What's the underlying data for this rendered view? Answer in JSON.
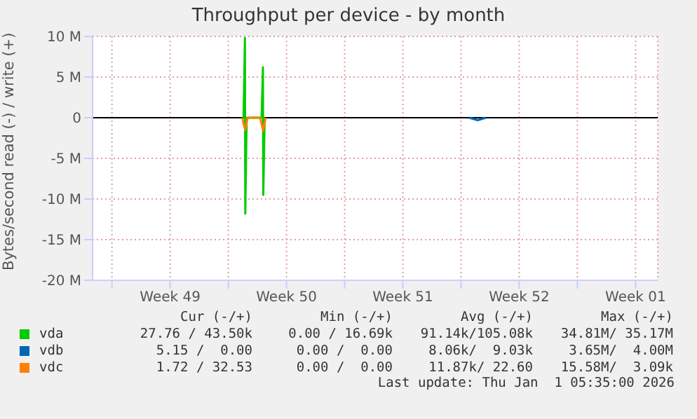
{
  "chart_data": {
    "type": "line",
    "title": "Throughput per device - by month",
    "ylabel": "Bytes/second read (-) / write (+)",
    "series": [
      {
        "name": "vda",
        "color": "#00cc00",
        "x": [
          "2025-12-08T22:00",
          "2025-12-09T00:00",
          "2025-12-09T00:30",
          "2025-12-09T02:30",
          "2025-12-10T00:00",
          "2025-12-10T02:00",
          "2025-12-10T02:30",
          "2025-12-10T04:30"
        ],
        "values": [
          0,
          9800000,
          -11800000,
          0,
          0,
          6200000,
          -9500000,
          0
        ]
      },
      {
        "name": "vdb",
        "color": "#0066b3",
        "x": [
          "2025-12-22T12:00",
          "2025-12-23T00:00",
          "2025-12-23T12:00"
        ],
        "values": [
          0,
          -300000,
          0
        ]
      },
      {
        "name": "vdc",
        "color": "#ff8000",
        "x": [
          "2025-12-08T20:00",
          "2025-12-09T00:15",
          "2025-12-09T04:00",
          "2025-12-09T22:00",
          "2025-12-10T02:15",
          "2025-12-10T06:00"
        ],
        "values": [
          0,
          -1500000,
          0,
          0,
          -1600000,
          0
        ]
      }
    ],
    "xlim": [
      "2025-11-29T20:00",
      "2026-01-02T20:00"
    ],
    "xticks": [
      {
        "value": "2025-12-01",
        "label": null
      },
      {
        "value": "2025-12-04T12:00",
        "label": "Week 49"
      },
      {
        "value": "2025-12-08",
        "label": null
      },
      {
        "value": "2025-12-11T12:00",
        "label": "Week 50"
      },
      {
        "value": "2025-12-15",
        "label": null
      },
      {
        "value": "2025-12-18T12:00",
        "label": "Week 51"
      },
      {
        "value": "2025-12-22",
        "label": null
      },
      {
        "value": "2025-12-25T12:00",
        "label": "Week 52"
      },
      {
        "value": "2025-12-29",
        "label": null
      },
      {
        "value": "2026-01-01T12:00",
        "label": "Week 01"
      }
    ],
    "ylim": [
      -20000000,
      10000000
    ],
    "yticks": [
      {
        "value": -20000000,
        "label": "-20 M"
      },
      {
        "value": -15000000,
        "label": "-15 M"
      },
      {
        "value": -10000000,
        "label": "-10 M"
      },
      {
        "value": -5000000,
        "label": "-5 M"
      },
      {
        "value": 0,
        "label": "0"
      },
      {
        "value": 5000000,
        "label": "5 M"
      },
      {
        "value": 10000000,
        "label": "10 M"
      }
    ],
    "ref_lines": [
      {
        "axis": "y",
        "value": 0,
        "color": "#000000"
      }
    ],
    "grid": true,
    "legend": "bottom",
    "annotations": [
      "Cur (-/+)",
      "Min (-/+)",
      "Avg (-/+)",
      "Max (-/+)",
      "27.76 / 43.50k",
      "0.00 / 16.69k",
      "91.14k/105.08k",
      "34.81M/ 35.17M",
      "5.15 /  0.00",
      "0.00 /  0.00",
      "8.06k/  9.03k",
      "3.65M/  4.00M",
      "1.72 / 32.53",
      "0.00 /  0.00",
      "11.87k/ 22.60",
      "15.58M/  3.09k",
      "Last update: Thu Jan  1 05:35:00 2026"
    ]
  }
}
